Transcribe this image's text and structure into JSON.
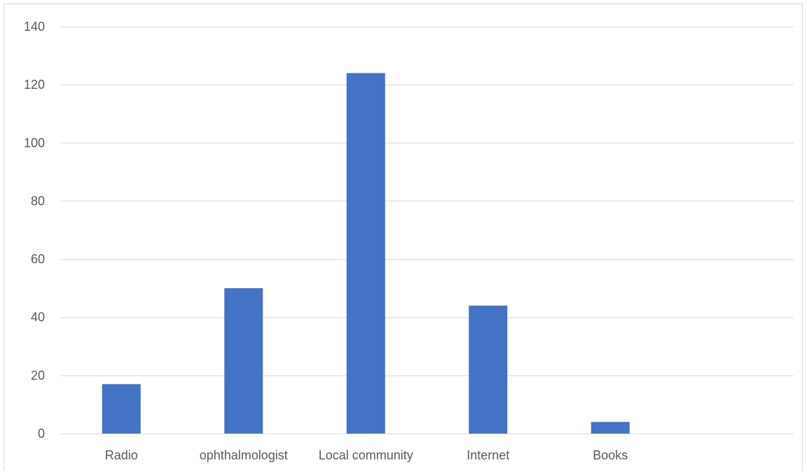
{
  "chart_data": {
    "type": "bar",
    "title": "",
    "xlabel": "",
    "ylabel": "",
    "categories": [
      "Radio",
      "ophthalmologist",
      "Local community",
      "Internet",
      "Books",
      ""
    ],
    "values": [
      17,
      50,
      124,
      44,
      4,
      null
    ],
    "ylim": [
      0,
      140
    ],
    "yticks": [
      0,
      20,
      40,
      60,
      80,
      100,
      120,
      140
    ],
    "grid": "horizontal",
    "legend": "none",
    "bar_color": "#4472c4"
  }
}
